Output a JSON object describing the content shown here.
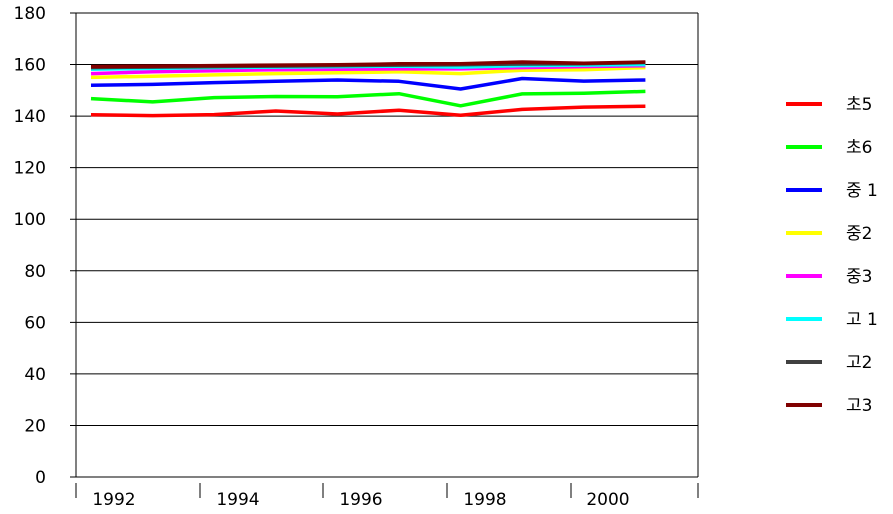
{
  "chart_data": {
    "type": "line",
    "categories": [
      "1992",
      "1993",
      "1994",
      "1995",
      "1996",
      "1997",
      "1998",
      "1999",
      "2000",
      "2001"
    ],
    "x_tick_labels": [
      "1992",
      "1994",
      "1996",
      "1998",
      "2000"
    ],
    "y_ticks": [
      0,
      20,
      40,
      60,
      80,
      100,
      120,
      140,
      160,
      180
    ],
    "ylim": [
      0,
      180
    ],
    "grid": "horizontal",
    "legend_position": "right",
    "series": [
      {
        "name": "초5",
        "color": "#ff0000",
        "values": [
          140.5,
          140.2,
          140.6,
          142.0,
          140.8,
          142.3,
          140.3,
          142.6,
          143.5,
          143.8
        ]
      },
      {
        "name": "초6",
        "color": "#00ff00",
        "values": [
          146.8,
          145.5,
          147.2,
          147.6,
          147.5,
          148.7,
          144.0,
          148.6,
          148.9,
          149.6
        ]
      },
      {
        "name": "중 1",
        "color": "#0000ff",
        "values": [
          152.0,
          152.3,
          153.0,
          153.5,
          154.0,
          153.5,
          150.5,
          154.6,
          153.6,
          154.0
        ]
      },
      {
        "name": "중2",
        "color": "#ffff00",
        "values": [
          155.0,
          155.5,
          156.0,
          156.5,
          156.8,
          157.2,
          156.5,
          157.8,
          158.0,
          158.8
        ]
      },
      {
        "name": "중3",
        "color": "#ff00ff",
        "values": [
          156.5,
          157.2,
          157.6,
          158.0,
          158.2,
          158.3,
          158.3,
          158.8,
          159.2,
          159.5
        ]
      },
      {
        "name": "고 1",
        "color": "#00ffff",
        "values": [
          158.2,
          158.5,
          158.8,
          159.0,
          159.2,
          159.4,
          159.0,
          159.6,
          159.8,
          160.0
        ]
      },
      {
        "name": "고2",
        "color": "#404040",
        "values": [
          158.8,
          159.0,
          159.2,
          159.4,
          159.6,
          159.8,
          159.9,
          160.2,
          160.3,
          160.8
        ]
      },
      {
        "name": "고3",
        "color": "#800000",
        "values": [
          159.2,
          159.4,
          159.6,
          159.8,
          159.9,
          160.3,
          160.3,
          161.0,
          160.5,
          161.0
        ]
      }
    ]
  }
}
